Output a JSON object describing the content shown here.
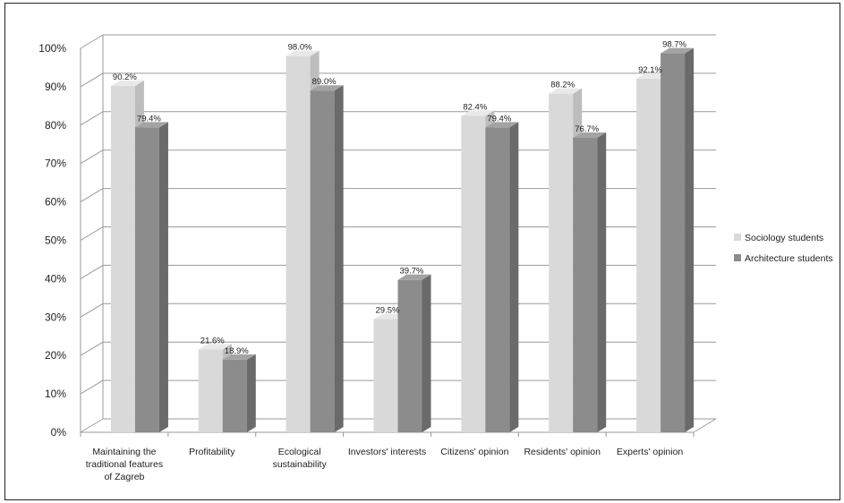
{
  "chart_data": {
    "type": "bar",
    "categories": [
      [
        "Maintaining the",
        "traditional features",
        "of Zagreb"
      ],
      [
        "Profitability"
      ],
      [
        "Ecological",
        "sustainability"
      ],
      [
        "Investors' interests"
      ],
      [
        "Citizens' opinion"
      ],
      [
        "Residents' opinion"
      ],
      [
        "Experts' opinion"
      ]
    ],
    "series": [
      {
        "name": "Sociology students",
        "values": [
          90.2,
          21.6,
          98.0,
          29.5,
          82.4,
          88.2,
          92.1
        ],
        "labels": [
          "90.2%",
          "21.6%",
          "98.0%",
          "29.5%",
          "82.4%",
          "88.2%",
          "92.1%"
        ],
        "color": "#d9d9d9",
        "top": "#e9e9e9",
        "side": "#bdbdbd"
      },
      {
        "name": "Architecture students",
        "values": [
          79.4,
          18.9,
          89.0,
          39.7,
          79.4,
          76.7,
          98.7
        ],
        "labels": [
          "79.4%",
          "18.9%",
          "89.0%",
          "39.7%",
          "79.4%",
          "76.7%",
          "98.7%"
        ],
        "color": "#8c8c8c",
        "top": "#a3a3a3",
        "side": "#6a6a6a"
      }
    ],
    "yticks": [
      "0%",
      "10%",
      "20%",
      "30%",
      "40%",
      "50%",
      "60%",
      "70%",
      "80%",
      "90%",
      "100%"
    ],
    "ylim": [
      0,
      100
    ],
    "grid": true,
    "legend": "right",
    "title": "",
    "xlabel": "",
    "ylabel": ""
  }
}
